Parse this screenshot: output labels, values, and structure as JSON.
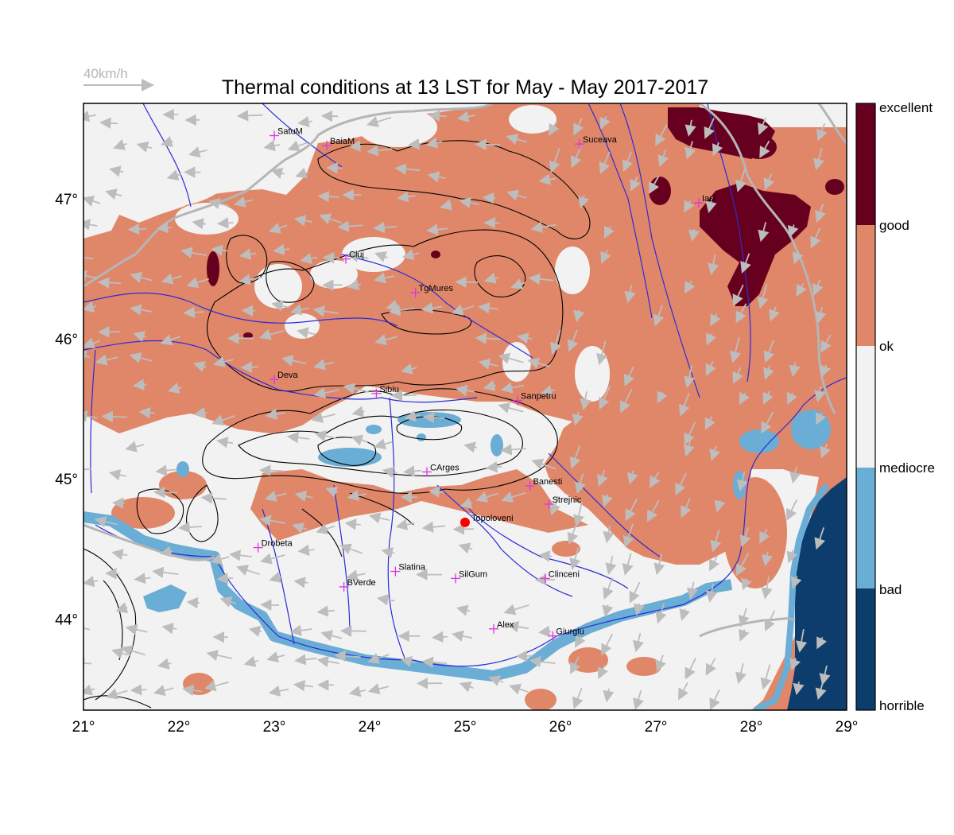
{
  "title": "Thermal conditions at 13 LST for May - May  2017-2017",
  "wind_scale": {
    "label": "40km/h"
  },
  "map_extent": {
    "lon": [
      21,
      29
    ],
    "lat": [
      43.35,
      47.68
    ]
  },
  "longitude_ticks": [
    {
      "value": 21,
      "label": "21°"
    },
    {
      "value": 22,
      "label": "22°"
    },
    {
      "value": 23,
      "label": "23°"
    },
    {
      "value": 24,
      "label": "24°"
    },
    {
      "value": 25,
      "label": "25°"
    },
    {
      "value": 26,
      "label": "26°"
    },
    {
      "value": 27,
      "label": "27°"
    },
    {
      "value": 28,
      "label": "28°"
    },
    {
      "value": 29,
      "label": "29°"
    }
  ],
  "latitude_ticks": [
    {
      "value": 44,
      "label": "44°"
    },
    {
      "value": 45,
      "label": "45°"
    },
    {
      "value": 46,
      "label": "46°"
    },
    {
      "value": 47,
      "label": "47°"
    }
  ],
  "legend": {
    "classes": [
      {
        "label": "excellent",
        "color": "#67001f"
      },
      {
        "label": "good",
        "color": "#e0876a"
      },
      {
        "label": "ok",
        "color": "#f2f2f2"
      },
      {
        "label": "mediocre",
        "color": "#6aadd5"
      },
      {
        "label": "bad",
        "color": "#0d3d6c"
      },
      {
        "label": "horrible",
        "color": "#0d3d6c"
      }
    ]
  },
  "cities": [
    {
      "name": "SatuM",
      "lon": 23.0,
      "lat": 47.45
    },
    {
      "name": "BaiaM",
      "lon": 23.55,
      "lat": 47.38
    },
    {
      "name": "Suceava",
      "lon": 26.2,
      "lat": 47.39
    },
    {
      "name": "Iasi",
      "lon": 27.45,
      "lat": 46.97
    },
    {
      "name": "Cluj",
      "lon": 23.75,
      "lat": 46.57
    },
    {
      "name": "TgMures",
      "lon": 24.48,
      "lat": 46.33
    },
    {
      "name": "Deva",
      "lon": 23.0,
      "lat": 45.71
    },
    {
      "name": "Sibiu",
      "lon": 24.07,
      "lat": 45.61
    },
    {
      "name": "Sanpetru",
      "lon": 25.55,
      "lat": 45.56
    },
    {
      "name": "CArges",
      "lon": 24.6,
      "lat": 45.05
    },
    {
      "name": "Banesti",
      "lon": 25.68,
      "lat": 44.95
    },
    {
      "name": "Strejnic",
      "lon": 25.88,
      "lat": 44.82
    },
    {
      "name": "Drobeta",
      "lon": 22.83,
      "lat": 44.51
    },
    {
      "name": "Slatina",
      "lon": 24.27,
      "lat": 44.34
    },
    {
      "name": "SilGum",
      "lon": 24.9,
      "lat": 44.29
    },
    {
      "name": "Clinceni",
      "lon": 25.84,
      "lat": 44.29
    },
    {
      "name": "BVerde",
      "lon": 23.73,
      "lat": 44.23
    },
    {
      "name": "Alex",
      "lon": 25.3,
      "lat": 43.93
    },
    {
      "name": "Giurgiu",
      "lon": 25.92,
      "lat": 43.88
    }
  ],
  "highlight_site": {
    "name": "Topoloveni",
    "lon": 25.0,
    "lat": 44.69,
    "color": "#ff0000"
  },
  "colors": {
    "excellent": "#67001f",
    "good": "#e0876a",
    "ok": "#f2f2f2",
    "mediocre": "#6aadd5",
    "horrible": "#0d3d6c",
    "city_marker": "#e033e0",
    "river": "#2b2bd8",
    "border": "#b5b5b5",
    "wind_arrow": "#bdbdbd",
    "contour": "#000000"
  }
}
